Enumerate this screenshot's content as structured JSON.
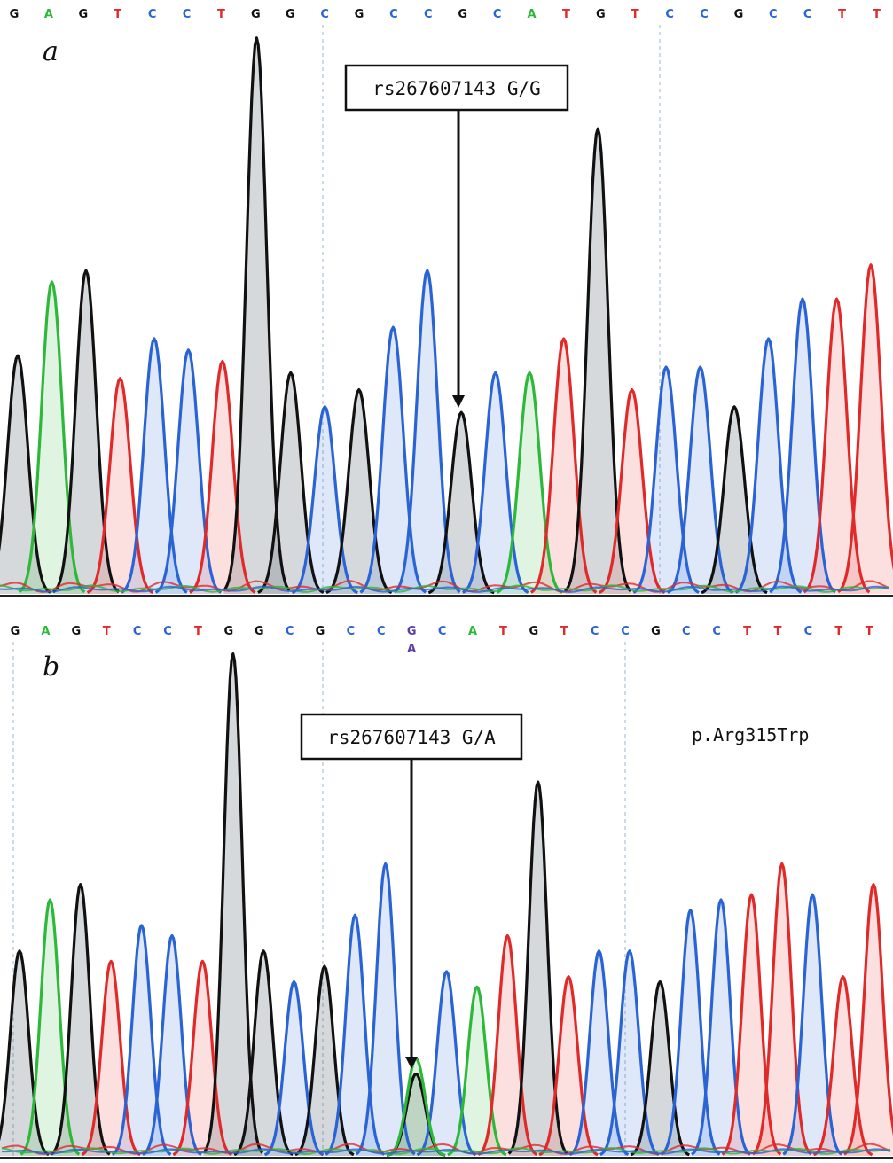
{
  "colors": {
    "A": "#2db83a",
    "C": "#2a63d4",
    "G": "#111111",
    "T": "#e02a2a",
    "ambiguous": "#5a3fa6"
  },
  "chart_data": [
    {
      "type": "chromatogram",
      "panel_label": "a",
      "bases": [
        "G",
        "A",
        "G",
        "T",
        "C",
        "C",
        "T",
        "G",
        "G",
        "C",
        "G",
        "C",
        "C",
        "G",
        "C",
        "A",
        "T",
        "G",
        "T",
        "C",
        "C",
        "G",
        "C",
        "C",
        "T",
        "T"
      ],
      "peaks": [
        {
          "base": "G",
          "height": 0.42
        },
        {
          "base": "A",
          "height": 0.55
        },
        {
          "base": "G",
          "height": 0.57
        },
        {
          "base": "T",
          "height": 0.38
        },
        {
          "base": "C",
          "height": 0.45
        },
        {
          "base": "C",
          "height": 0.43
        },
        {
          "base": "T",
          "height": 0.41
        },
        {
          "base": "G",
          "height": 0.98
        },
        {
          "base": "G",
          "height": 0.39
        },
        {
          "base": "C",
          "height": 0.33
        },
        {
          "base": "G",
          "height": 0.36
        },
        {
          "base": "C",
          "height": 0.47
        },
        {
          "base": "C",
          "height": 0.57
        },
        {
          "base": "G",
          "height": 0.32
        },
        {
          "base": "C",
          "height": 0.39
        },
        {
          "base": "A",
          "height": 0.39
        },
        {
          "base": "T",
          "height": 0.45
        },
        {
          "base": "G",
          "height": 0.82
        },
        {
          "base": "T",
          "height": 0.36
        },
        {
          "base": "C",
          "height": 0.4
        },
        {
          "base": "C",
          "height": 0.4
        },
        {
          "base": "G",
          "height": 0.33
        },
        {
          "base": "C",
          "height": 0.45
        },
        {
          "base": "C",
          "height": 0.52
        },
        {
          "base": "T",
          "height": 0.52
        },
        {
          "base": "T",
          "height": 0.58
        }
      ],
      "callout": "rs267607143  G/G",
      "callout_peak": 13
    },
    {
      "type": "chromatogram",
      "panel_label": "b",
      "bases": [
        "G",
        "A",
        "G",
        "T",
        "C",
        "C",
        "T",
        "G",
        "G",
        "C",
        "G",
        "C",
        "C",
        "G",
        "C",
        "A",
        "T",
        "G",
        "T",
        "C",
        "C",
        "G",
        "C",
        "C",
        "T",
        "T",
        "C",
        "T",
        "T"
      ],
      "ambiguous_position": 13,
      "ambiguous_bases": [
        "G",
        "A"
      ],
      "peaks": [
        {
          "base": "G",
          "height": 0.4
        },
        {
          "base": "A",
          "height": 0.5
        },
        {
          "base": "G",
          "height": 0.53
        },
        {
          "base": "T",
          "height": 0.38
        },
        {
          "base": "C",
          "height": 0.45
        },
        {
          "base": "C",
          "height": 0.43
        },
        {
          "base": "T",
          "height": 0.38
        },
        {
          "base": "G",
          "height": 0.98
        },
        {
          "base": "G",
          "height": 0.4
        },
        {
          "base": "C",
          "height": 0.34
        },
        {
          "base": "G",
          "height": 0.37
        },
        {
          "base": "C",
          "height": 0.47
        },
        {
          "base": "C",
          "height": 0.57
        },
        {
          "base": "G",
          "height": 0.16
        },
        {
          "base": "C",
          "height": 0.36
        },
        {
          "base": "A",
          "height": 0.33
        },
        {
          "base": "T",
          "height": 0.43
        },
        {
          "base": "G",
          "height": 0.73
        },
        {
          "base": "T",
          "height": 0.35
        },
        {
          "base": "C",
          "height": 0.4
        },
        {
          "base": "C",
          "height": 0.4
        },
        {
          "base": "G",
          "height": 0.34
        },
        {
          "base": "C",
          "height": 0.48
        },
        {
          "base": "C",
          "height": 0.5
        },
        {
          "base": "T",
          "height": 0.51
        },
        {
          "base": "T",
          "height": 0.57
        },
        {
          "base": "C",
          "height": 0.51
        },
        {
          "base": "T",
          "height": 0.35
        },
        {
          "base": "T",
          "height": 0.53
        }
      ],
      "secondary_peaks": [
        {
          "position": 13,
          "base": "A",
          "height": 0.19
        }
      ],
      "callout": "rs267607143  G/A",
      "callout_peak": 13,
      "annotation": "p.Arg315Trp"
    }
  ]
}
